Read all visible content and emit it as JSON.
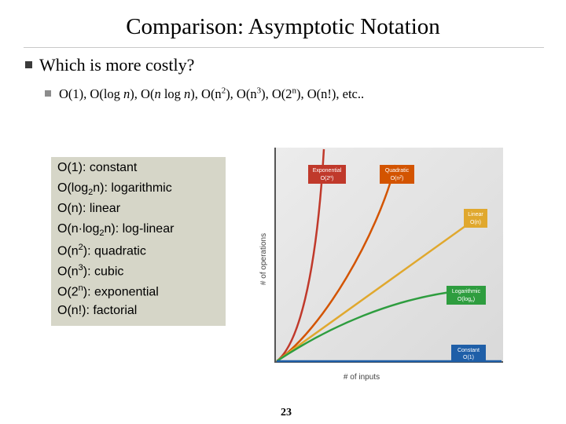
{
  "slide": {
    "title": "Comparison: Asymptotic Notation",
    "bullet1": "Which is more costly?",
    "bullet2_parts": [
      "O(1), O(log ",
      "n",
      "), O(",
      "n",
      " log ",
      "n",
      "), O(n",
      "2",
      "), O(n",
      "3",
      "), O(2",
      "n",
      "), O(n!), etc.."
    ],
    "page_number": "23"
  },
  "legend": {
    "items": [
      {
        "a": "O(1): constant",
        "sup_or_sub": "",
        "b": ""
      },
      {
        "a": "O(log",
        "sub": "2",
        "b": "n): logarithmic"
      },
      {
        "a": "O(n): linear",
        "sub": "",
        "b": ""
      },
      {
        "a": "O(n·log",
        "sub": "2",
        "b": "n): log-linear"
      },
      {
        "a": "O(n",
        "sup": "2",
        "b": "): quadratic"
      },
      {
        "a": "O(n",
        "sup": "3",
        "b": "): cubic"
      },
      {
        "a": "O(2",
        "sup": "n",
        "b": "): exponential"
      },
      {
        "a": "O(n!): factorial",
        "sub": "",
        "b": ""
      }
    ]
  },
  "chart_data": {
    "type": "line",
    "xlabel": "# of inputs",
    "ylabel": "# of operations",
    "series": [
      {
        "name": "Exponential O(2^n)",
        "label_line1": "Exponential",
        "label_line2": "O(2",
        "label_sup": "n",
        "label_end": ")",
        "color": "#c0392b"
      },
      {
        "name": "Quadratic O(n^2)",
        "label_line1": "Quadratic",
        "label_line2": "O(n",
        "label_sup": "2",
        "label_end": ")",
        "color": "#d35400"
      },
      {
        "name": "Linear O(n)",
        "label_line1": "Linear",
        "label_line2": "O(n)",
        "label_sup": "",
        "label_end": "",
        "color": "#e0a82e"
      },
      {
        "name": "Logarithmic O(log n)",
        "label_line1": "Logarithmic",
        "label_line2": "O(log",
        "label_sub": "n",
        "label_end": ")",
        "color": "#2e9d3f"
      },
      {
        "name": "Constant O(1)",
        "label_line1": "Constant",
        "label_line2": "O(1)",
        "label_sup": "",
        "label_end": "",
        "color": "#1f5fa8"
      }
    ]
  }
}
